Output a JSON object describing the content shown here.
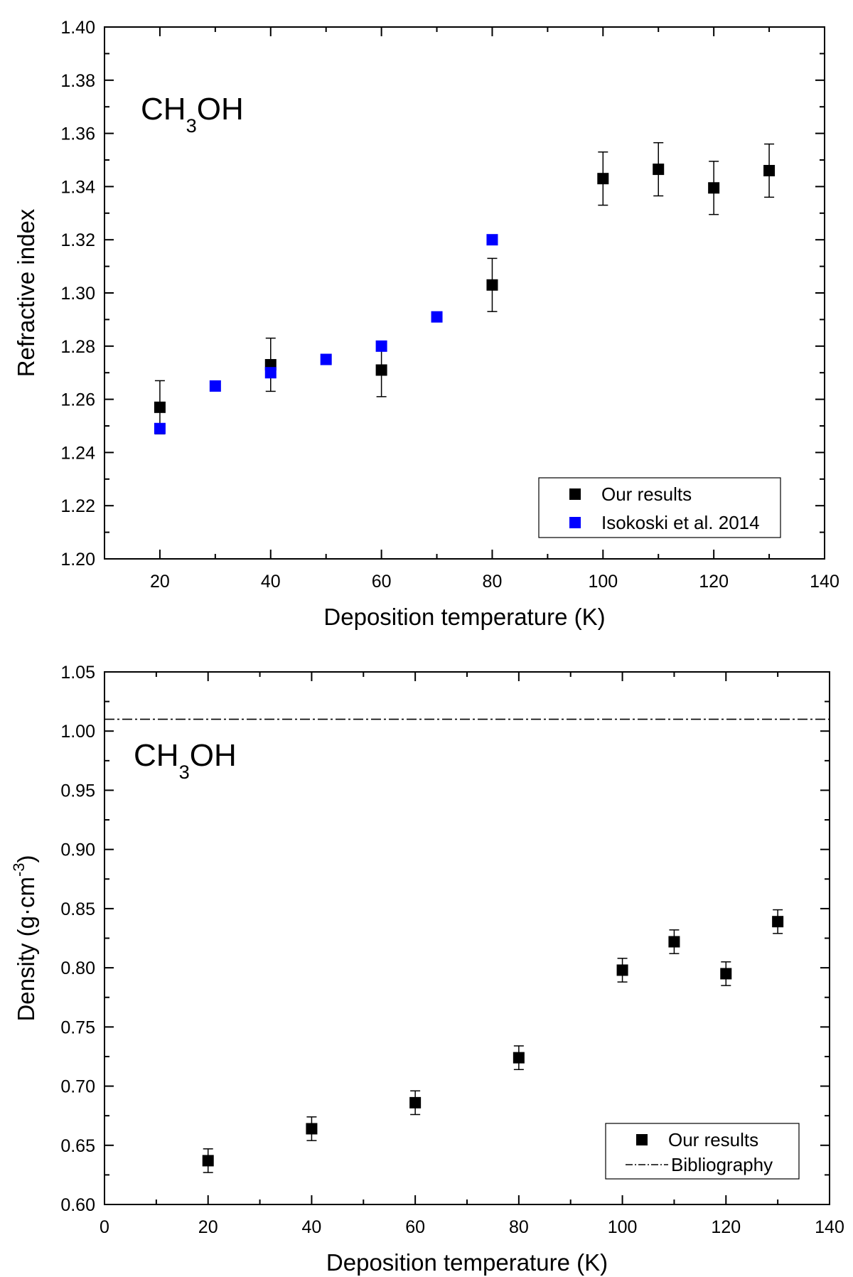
{
  "chart_data": [
    {
      "type": "scatter",
      "annotation": {
        "main": "CH",
        "sub": "3",
        "rest": "OH"
      },
      "xlabel": "Deposition temperature (K)",
      "ylabel": "Refractive index",
      "xlim": [
        10,
        140
      ],
      "ylim": [
        1.2,
        1.4
      ],
      "x_ticks": [
        20,
        40,
        60,
        80,
        100,
        120,
        140
      ],
      "x_tick_labels": [
        "20",
        "40",
        "60",
        "80",
        "100",
        "120",
        "140"
      ],
      "y_ticks": [
        1.2,
        1.22,
        1.24,
        1.26,
        1.28,
        1.3,
        1.32,
        1.34,
        1.36,
        1.38,
        1.4
      ],
      "y_tick_labels": [
        "1.20",
        "1.22",
        "1.24",
        "1.26",
        "1.28",
        "1.30",
        "1.32",
        "1.34",
        "1.36",
        "1.38",
        "1.40"
      ],
      "legend_position": "bottom-right",
      "series": [
        {
          "name": "Our results",
          "color": "#000000",
          "marker": "square",
          "x": [
            20,
            40,
            60,
            80,
            100,
            110,
            120,
            130
          ],
          "y": [
            1.257,
            1.273,
            1.271,
            1.303,
            1.343,
            1.3465,
            1.3395,
            1.346
          ],
          "yerr": [
            0.01,
            0.01,
            0.01,
            0.01,
            0.01,
            0.01,
            0.01,
            0.01
          ]
        },
        {
          "name": "Isokoski  et al.  2014",
          "color": "#0000ff",
          "marker": "square",
          "x": [
            20,
            30,
            40,
            50,
            60,
            70,
            80
          ],
          "y": [
            1.249,
            1.265,
            1.27,
            1.275,
            1.28,
            1.291,
            1.32
          ]
        }
      ]
    },
    {
      "type": "scatter",
      "annotation": {
        "main": "CH",
        "sub": "3",
        "rest": "OH"
      },
      "xlabel": "Deposition temperature (K)",
      "ylabel": "Density (g·cm",
      "ylabel_sup": "-3",
      "ylabel_end": ")",
      "xlim": [
        0,
        140
      ],
      "ylim": [
        0.6,
        1.05
      ],
      "x_ticks": [
        0,
        20,
        40,
        60,
        80,
        100,
        120,
        140
      ],
      "x_tick_labels": [
        "0",
        "20",
        "40",
        "60",
        "80",
        "100",
        "120",
        "140"
      ],
      "y_ticks": [
        0.6,
        0.65,
        0.7,
        0.75,
        0.8,
        0.85,
        0.9,
        0.95,
        1.0,
        1.05
      ],
      "y_tick_labels": [
        "0.60",
        "0.65",
        "0.70",
        "0.75",
        "0.80",
        "0.85",
        "0.90",
        "0.95",
        "1.00",
        "1.05"
      ],
      "legend_position": "bottom-right",
      "series": [
        {
          "name": "Our results",
          "color": "#000000",
          "marker": "square",
          "x": [
            20,
            40,
            60,
            80,
            100,
            110,
            120,
            130
          ],
          "y": [
            0.637,
            0.664,
            0.686,
            0.724,
            0.798,
            0.822,
            0.795,
            0.839
          ],
          "yerr": [
            0.01,
            0.01,
            0.01,
            0.01,
            0.01,
            0.01,
            0.01,
            0.01
          ]
        }
      ],
      "reference_lines": [
        {
          "name": "Bibliography",
          "y": 1.01,
          "style": "dash-dot",
          "color": "#000000"
        }
      ]
    }
  ]
}
